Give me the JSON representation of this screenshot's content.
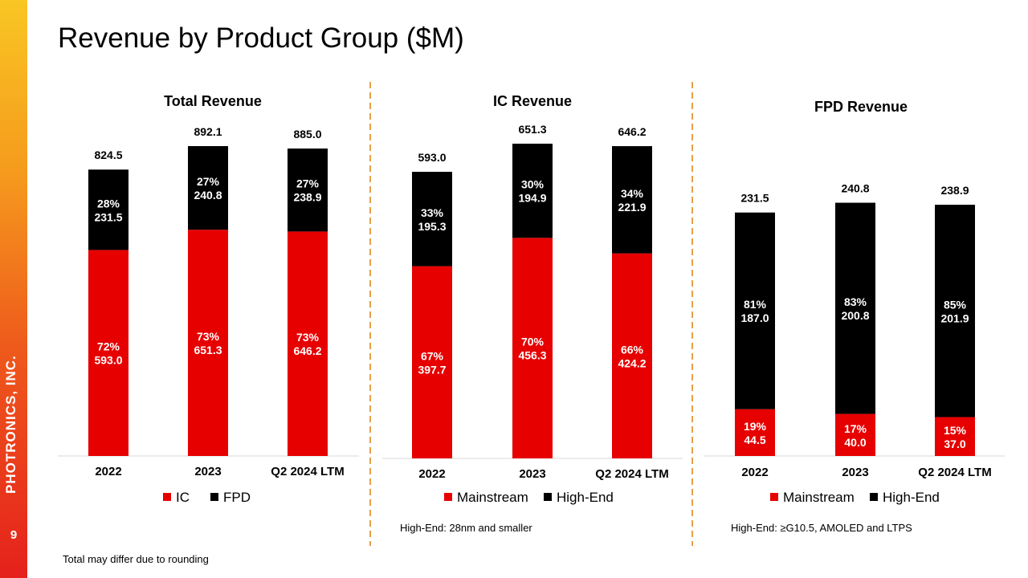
{
  "page": {
    "title": "Revenue by Product Group ($M)",
    "company": "PHOTRONICS, INC.",
    "page_number": "9",
    "footnote": "Total may differ due to rounding"
  },
  "colors": {
    "red": "#e60000",
    "black": "#000000",
    "divider": "#e8a048"
  },
  "chart_data": [
    {
      "type": "bar",
      "stacked": true,
      "title": "Total Revenue",
      "categories": [
        "2022",
        "2023",
        "Q2 2024 LTM"
      ],
      "totals": [
        "824.5",
        "892.1",
        "885.0"
      ],
      "series": [
        {
          "name": "IC",
          "color": "#e60000",
          "values": [
            593.0,
            651.3,
            646.2
          ],
          "pct": [
            "72%",
            "73%",
            "73%"
          ],
          "labels": [
            "593.0",
            "651.3",
            "646.2"
          ]
        },
        {
          "name": "FPD",
          "color": "#000000",
          "values": [
            231.5,
            240.8,
            238.9
          ],
          "pct": [
            "28%",
            "27%",
            "27%"
          ],
          "labels": [
            "231.5",
            "240.8",
            "238.9"
          ]
        }
      ],
      "note": ""
    },
    {
      "type": "bar",
      "stacked": true,
      "title": "IC Revenue",
      "categories": [
        "2022",
        "2023",
        "Q2 2024 LTM"
      ],
      "totals": [
        "593.0",
        "651.3",
        "646.2"
      ],
      "series": [
        {
          "name": "Mainstream",
          "color": "#e60000",
          "values": [
            397.7,
            456.3,
            424.2
          ],
          "pct": [
            "67%",
            "70%",
            "66%"
          ],
          "labels": [
            "397.7",
            "456.3",
            "424.2"
          ]
        },
        {
          "name": "High-End",
          "color": "#000000",
          "values": [
            195.3,
            194.9,
            221.9
          ],
          "pct": [
            "33%",
            "30%",
            "34%"
          ],
          "labels": [
            "195.3",
            "194.9",
            "221.9"
          ]
        }
      ],
      "note": "High-End: 28nm and smaller"
    },
    {
      "type": "bar",
      "stacked": true,
      "title": "FPD Revenue",
      "categories": [
        "2022",
        "2023",
        "Q2 2024 LTM"
      ],
      "totals": [
        "231.5",
        "240.8",
        "238.9"
      ],
      "series": [
        {
          "name": "Mainstream",
          "color": "#e60000",
          "values": [
            44.5,
            40.0,
            37.0
          ],
          "pct": [
            "19%",
            "17%",
            "15%"
          ],
          "labels": [
            "44.5",
            "40.0",
            "37.0"
          ]
        },
        {
          "name": "High-End",
          "color": "#000000",
          "values": [
            187.0,
            200.8,
            201.9
          ],
          "pct": [
            "81%",
            "83%",
            "85%"
          ],
          "labels": [
            "187.0",
            "200.8",
            "201.9"
          ]
        }
      ],
      "note": "High-End: ≥G10.5, AMOLED and LTPS"
    }
  ]
}
